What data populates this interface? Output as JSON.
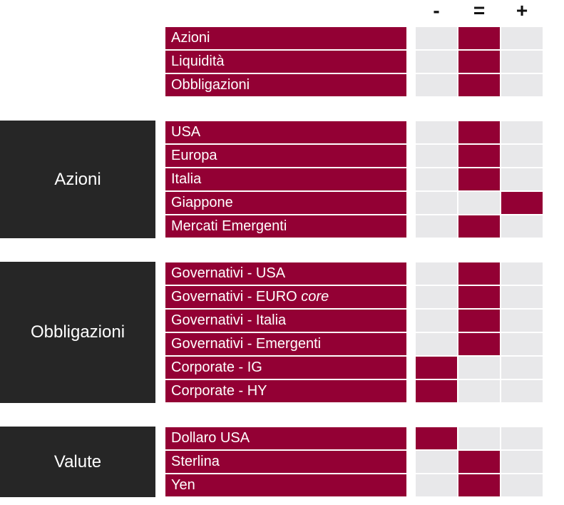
{
  "header": {
    "minus": "-",
    "equal": "=",
    "plus": "+"
  },
  "colors": {
    "accent": "#930034",
    "neutral": "#e8e8ea",
    "group_bg": "#262626"
  },
  "groups": [
    {
      "name": "",
      "rows": [
        {
          "label": "Azioni",
          "rating": "="
        },
        {
          "label": "Liquidità",
          "rating": "="
        },
        {
          "label": "Obbligazioni",
          "rating": "="
        }
      ]
    },
    {
      "name": "Azioni",
      "rows": [
        {
          "label": "USA",
          "rating": "="
        },
        {
          "label": "Europa",
          "rating": "="
        },
        {
          "label": "Italia",
          "rating": "="
        },
        {
          "label": "Giappone",
          "rating": "+"
        },
        {
          "label": "Mercati Emergenti",
          "rating": "="
        }
      ]
    },
    {
      "name": "Obbligazioni",
      "rows": [
        {
          "label": "Governativi - USA",
          "rating": "="
        },
        {
          "label": "Governativi - EURO",
          "label_italic": "core",
          "rating": "="
        },
        {
          "label": "Governativi - Italia",
          "rating": "="
        },
        {
          "label": "Governativi - Emergenti",
          "rating": "="
        },
        {
          "label": "Corporate - IG",
          "rating": "-"
        },
        {
          "label": "Corporate - HY",
          "rating": "-"
        }
      ]
    },
    {
      "name": "Valute",
      "rows": [
        {
          "label": "Dollaro USA",
          "rating": "-"
        },
        {
          "label": "Sterlina",
          "rating": "="
        },
        {
          "label": "Yen",
          "rating": "="
        }
      ]
    }
  ]
}
